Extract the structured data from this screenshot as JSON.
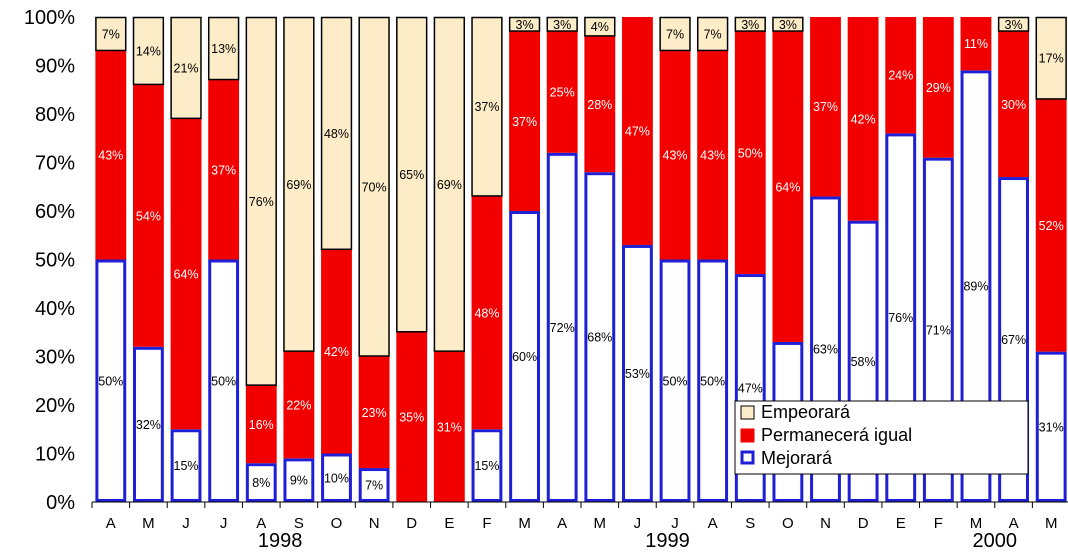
{
  "chart_data": {
    "type": "bar",
    "stacked": true,
    "percent": true,
    "title": "",
    "xlabel": "",
    "ylabel": "",
    "ylim": [
      0,
      100
    ],
    "yticks": [
      "0%",
      "10%",
      "20%",
      "30%",
      "40%",
      "50%",
      "60%",
      "70%",
      "80%",
      "90%",
      "100%"
    ],
    "categories": [
      "A",
      "M",
      "J",
      "J",
      "A",
      "S",
      "O",
      "N",
      "D",
      "E",
      "F",
      "M",
      "A",
      "M",
      "J",
      "J",
      "A",
      "S",
      "O",
      "N",
      "D",
      "E",
      "F",
      "M",
      "A",
      "M"
    ],
    "year_labels": [
      {
        "label": "1998",
        "index": 4.5
      },
      {
        "label": "1999",
        "index": 14.8
      },
      {
        "label": "2000",
        "index": 23.5
      }
    ],
    "series": [
      {
        "name": "Mejorará",
        "color": "#ffffff",
        "border": "#1f1fd6",
        "values": [
          50,
          32,
          15,
          50,
          8,
          9,
          10,
          7,
          0,
          0,
          15,
          60,
          72,
          68,
          53,
          50,
          50,
          47,
          33,
          63,
          58,
          76,
          71,
          89,
          67,
          31
        ],
        "labels": [
          "50%",
          "32%",
          "15%",
          "50%",
          "8%",
          "9%",
          "10%",
          "7%",
          "",
          "",
          "15%",
          "60%",
          "72%",
          "68%",
          "53%",
          "50%",
          "50%",
          "47%",
          "33%",
          "63%",
          "58%",
          "76%",
          "71%",
          "89%",
          "67%",
          "31%"
        ]
      },
      {
        "name": "Permanecerá igual",
        "color": "#f20000",
        "border": "#f20000",
        "values": [
          43,
          54,
          64,
          37,
          16,
          22,
          42,
          23,
          35,
          31,
          48,
          37,
          25,
          28,
          47,
          43,
          43,
          50,
          64,
          37,
          42,
          24,
          29,
          11,
          30,
          52
        ],
        "labels": [
          "43%",
          "54%",
          "64%",
          "37%",
          "16%",
          "22%",
          "42%",
          "23%",
          "35%",
          "31%",
          "48%",
          "37%",
          "25%",
          "28%",
          "47%",
          "43%",
          "43%",
          "50%",
          "64%",
          "37%",
          "42%",
          "24%",
          "29%",
          "11%",
          "30%",
          "52%"
        ]
      },
      {
        "name": "Empeorará",
        "color": "#fcecc8",
        "border": "#000000",
        "values": [
          7,
          14,
          21,
          13,
          76,
          69,
          48,
          70,
          65,
          69,
          37,
          3,
          3,
          4,
          0,
          7,
          7,
          3,
          3,
          0,
          0,
          0,
          0,
          0,
          3,
          17
        ],
        "labels": [
          "7%",
          "14%",
          "21%",
          "13%",
          "76%",
          "69%",
          "48%",
          "70%",
          "65%",
          "69%",
          "37%",
          "3%",
          "3%",
          "4%",
          "",
          "7%",
          "7%",
          "3%",
          "3%",
          "",
          "",
          "",
          "",
          "",
          "3%",
          "17%"
        ]
      }
    ],
    "legend": {
      "position": "bottom-right",
      "entries": [
        "Empeorará",
        "Permanecerá igual",
        "Mejorará"
      ]
    },
    "grid": false
  }
}
